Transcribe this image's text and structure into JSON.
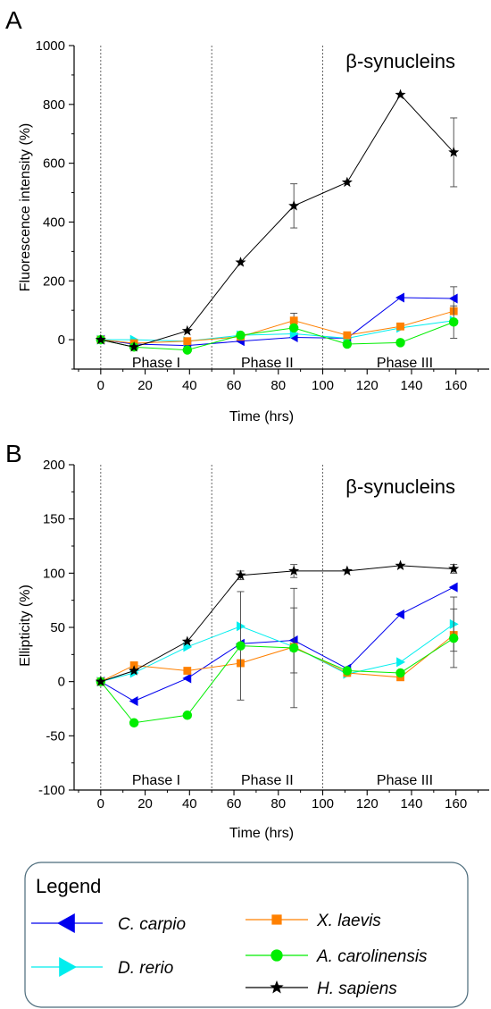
{
  "chart_data": [
    {
      "panel": "A",
      "type": "line",
      "title": "β-synucleins",
      "xlabel": "Time (hrs)",
      "ylabel": "Fluorescence intensity (%)",
      "xlim": [
        -12,
        175
      ],
      "ylim": [
        -100,
        1000
      ],
      "x_ticks": [
        "0",
        "20",
        "40",
        "60",
        "80",
        "100",
        "120",
        "140",
        "160"
      ],
      "y_ticks": [
        "0",
        "200",
        "400",
        "600",
        "800",
        "1000"
      ],
      "phase_dividers": [
        0,
        50,
        100
      ],
      "phases": [
        {
          "label": "Phase I",
          "x": 25
        },
        {
          "label": "Phase II",
          "x": 75
        },
        {
          "label": "Phase III",
          "x": 137
        }
      ],
      "x": [
        0,
        15,
        39,
        63,
        87,
        111,
        135,
        159
      ],
      "series": [
        {
          "name": "C. carpio",
          "color": "#0000ee",
          "marker": "triangle-left",
          "values": [
            0,
            -15,
            -20,
            -5,
            8,
            5,
            143,
            140
          ],
          "errors": [
            0,
            0,
            0,
            0,
            0,
            0,
            0,
            40
          ]
        },
        {
          "name": "D. rerio",
          "color": "#00eeee",
          "marker": "triangle-right",
          "values": [
            0,
            0,
            -5,
            15,
            20,
            5,
            40,
            65
          ],
          "errors": [
            0,
            0,
            0,
            0,
            0,
            0,
            0,
            0
          ]
        },
        {
          "name": "X. laevis",
          "color": "#ff8000",
          "marker": "square",
          "values": [
            0,
            -12,
            -5,
            10,
            65,
            15,
            45,
            97
          ],
          "errors": [
            0,
            0,
            0,
            10,
            25,
            0,
            0,
            0
          ]
        },
        {
          "name": "A. carolinensis",
          "color": "#00ee00",
          "marker": "circle",
          "values": [
            0,
            -25,
            -35,
            15,
            40,
            -15,
            -10,
            60
          ],
          "errors": [
            0,
            0,
            0,
            0,
            0,
            0,
            0,
            55
          ]
        },
        {
          "name": "H. sapiens",
          "color": "#000000",
          "marker": "star",
          "values": [
            0,
            -25,
            30,
            263,
            455,
            535,
            833,
            637
          ],
          "errors": [
            0,
            0,
            0,
            0,
            75,
            0,
            0,
            117
          ]
        }
      ]
    },
    {
      "panel": "B",
      "type": "line",
      "title": "β-synucleins",
      "xlabel": "Time (hrs)",
      "ylabel": "Ellipticity (%)",
      "xlim": [
        -12,
        175
      ],
      "ylim": [
        -100,
        200
      ],
      "x_ticks": [
        "0",
        "20",
        "40",
        "60",
        "80",
        "100",
        "120",
        "140",
        "160"
      ],
      "y_ticks": [
        "-100",
        "-50",
        "0",
        "50",
        "100",
        "150",
        "200"
      ],
      "phase_dividers": [
        0,
        50,
        100
      ],
      "phases": [
        {
          "label": "Phase I",
          "x": 25
        },
        {
          "label": "Phase II",
          "x": 75
        },
        {
          "label": "Phase III",
          "x": 137
        }
      ],
      "x": [
        0,
        15,
        39,
        63,
        87,
        111,
        135,
        159
      ],
      "series": [
        {
          "name": "C. carpio",
          "color": "#0000ee",
          "marker": "triangle-left",
          "values": [
            0,
            -18,
            3,
            35,
            38,
            12,
            62,
            87
          ],
          "errors": [
            0,
            0,
            0,
            0,
            30,
            0,
            0,
            0
          ]
        },
        {
          "name": "D. rerio",
          "color": "#00eeee",
          "marker": "triangle-right",
          "values": [
            0,
            8,
            32,
            51,
            32,
            7,
            18,
            53
          ],
          "errors": [
            0,
            0,
            0,
            0,
            0,
            0,
            0,
            25
          ]
        },
        {
          "name": "X. laevis",
          "color": "#ff8000",
          "marker": "square",
          "values": [
            0,
            15,
            10,
            17,
            32,
            8,
            4,
            43
          ],
          "errors": [
            0,
            0,
            0,
            0,
            0,
            0,
            0,
            0
          ]
        },
        {
          "name": "A. carolinensis",
          "color": "#00ee00",
          "marker": "circle",
          "values": [
            0,
            -38,
            -31,
            33,
            31,
            10,
            8,
            40
          ],
          "errors": [
            0,
            0,
            0,
            50,
            55,
            0,
            0,
            27
          ]
        },
        {
          "name": "H. sapiens",
          "color": "#000000",
          "marker": "star",
          "values": [
            0,
            10,
            37,
            98,
            102,
            102,
            107,
            104
          ],
          "errors": [
            0,
            0,
            0,
            4,
            6,
            0,
            0,
            4
          ]
        }
      ]
    }
  ],
  "legend": {
    "title": "Legend",
    "entries": [
      {
        "label": "C. carpio",
        "color": "#0000ee",
        "marker": "triangle-left"
      },
      {
        "label": "X. laevis",
        "color": "#ff8000",
        "marker": "square"
      },
      {
        "label": "D. rerio",
        "color": "#00eeee",
        "marker": "triangle-right"
      },
      {
        "label": "A. carolinensis",
        "color": "#00ee00",
        "marker": "circle"
      },
      {
        "label": "H. sapiens",
        "color": "#000000",
        "marker": "star"
      }
    ]
  }
}
